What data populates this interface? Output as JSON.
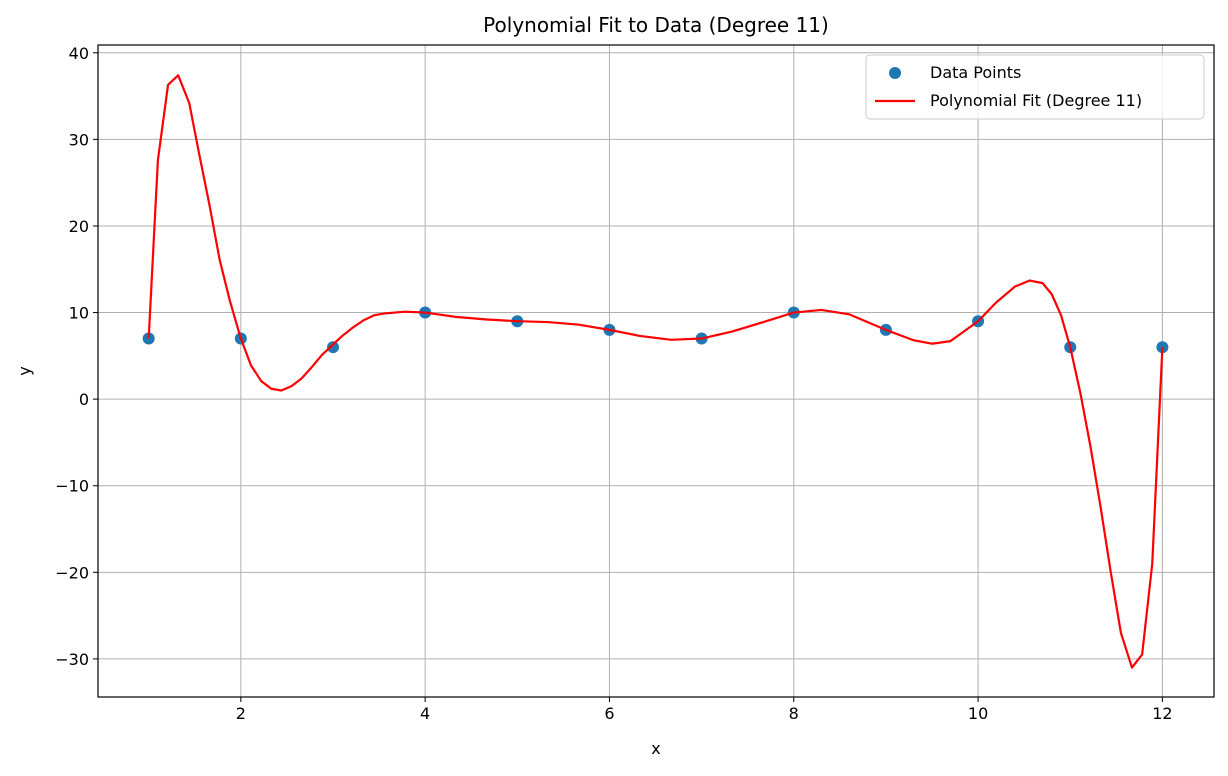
{
  "chart_data": {
    "type": "scatter",
    "title": "Polynomial Fit to Data (Degree 11)",
    "xlabel": "x",
    "ylabel": "y",
    "xlim": [
      0.45,
      12.56
    ],
    "ylim": [
      -34.4,
      40.9
    ],
    "xticks": [
      2,
      4,
      6,
      8,
      10,
      12
    ],
    "yticks": [
      -30,
      -20,
      -10,
      0,
      10,
      20,
      30,
      40
    ],
    "grid": true,
    "legend_position": "top-right",
    "series": [
      {
        "name": "Data Points",
        "kind": "scatter",
        "color": "#1f77b4",
        "x": [
          1,
          2,
          3,
          4,
          5,
          6,
          7,
          8,
          9,
          10,
          11,
          12
        ],
        "y": [
          7,
          7,
          6,
          10,
          9,
          8,
          7,
          10,
          8,
          9,
          6,
          6
        ]
      },
      {
        "name": "Polynomial Fit (Degree 11)",
        "kind": "line",
        "color": "#ff0000",
        "points": [
          [
            1,
            7
          ],
          [
            1.1,
            27.6
          ],
          [
            1.21,
            36.3
          ],
          [
            1.32,
            37.4
          ],
          [
            1.44,
            34.2
          ],
          [
            1.55,
            28.2
          ],
          [
            1.66,
            22.4
          ],
          [
            1.77,
            16.1
          ],
          [
            1.88,
            11.4
          ],
          [
            2,
            7
          ],
          [
            2.11,
            3.9
          ],
          [
            2.22,
            2.1
          ],
          [
            2.33,
            1.2
          ],
          [
            2.44,
            1.0
          ],
          [
            2.55,
            1.5
          ],
          [
            2.66,
            2.4
          ],
          [
            2.77,
            3.7
          ],
          [
            2.88,
            5.1
          ],
          [
            3,
            6.3
          ],
          [
            3.1,
            7.3
          ],
          [
            3.22,
            8.3
          ],
          [
            3.33,
            9.1
          ],
          [
            3.45,
            9.7
          ],
          [
            3.56,
            9.9
          ],
          [
            3.78,
            10.1
          ],
          [
            4,
            10
          ],
          [
            4.33,
            9.5
          ],
          [
            4.67,
            9.2
          ],
          [
            5,
            9
          ],
          [
            5.33,
            8.9
          ],
          [
            5.67,
            8.6
          ],
          [
            6,
            8
          ],
          [
            6.33,
            7.3
          ],
          [
            6.67,
            6.85
          ],
          [
            7,
            7
          ],
          [
            7.33,
            7.8
          ],
          [
            7.67,
            8.9
          ],
          [
            8,
            10
          ],
          [
            8.3,
            10.3
          ],
          [
            8.6,
            9.8
          ],
          [
            9,
            8
          ],
          [
            9.3,
            6.8
          ],
          [
            9.5,
            6.4
          ],
          [
            9.7,
            6.7
          ],
          [
            10,
            9
          ],
          [
            10.2,
            11.2
          ],
          [
            10.4,
            13.0
          ],
          [
            10.56,
            13.7
          ],
          [
            10.7,
            13.4
          ],
          [
            10.8,
            12.1
          ],
          [
            10.9,
            9.7
          ],
          [
            11,
            6
          ],
          [
            11.11,
            0.7
          ],
          [
            11.22,
            -5.5
          ],
          [
            11.33,
            -12.5
          ],
          [
            11.44,
            -20
          ],
          [
            11.55,
            -27
          ],
          [
            11.67,
            -31
          ],
          [
            11.78,
            -29.5
          ],
          [
            11.89,
            -19
          ],
          [
            12,
            6
          ]
        ]
      }
    ]
  }
}
